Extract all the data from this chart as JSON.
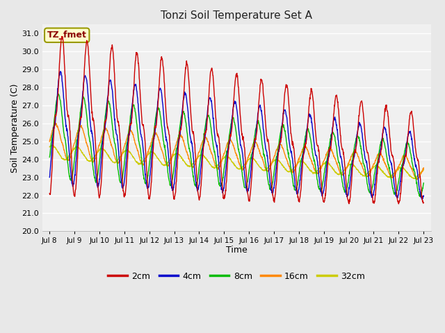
{
  "title": "Tonzi Soil Temperature Set A",
  "xlabel": "Time",
  "ylabel": "Soil Temperature (C)",
  "ylim": [
    20.0,
    31.5
  ],
  "yticks": [
    20.0,
    21.0,
    22.0,
    23.0,
    24.0,
    25.0,
    26.0,
    27.0,
    28.0,
    29.0,
    30.0,
    31.0
  ],
  "xtick_labels": [
    "Jul 8",
    "Jul 9",
    "Jul 10",
    "Jul 11",
    "Jul 12",
    "Jul 13",
    "Jul 14",
    "Jul 15",
    "Jul 16",
    "Jul 17",
    "Jul 18",
    "Jul 19",
    "Jul 20",
    "Jul 21",
    "Jul 22",
    "Jul 23"
  ],
  "legend_label": "TZ_fmet",
  "line_labels": [
    "2cm",
    "4cm",
    "8cm",
    "16cm",
    "32cm"
  ],
  "line_colors": [
    "#cc0000",
    "#0000cc",
    "#00bb00",
    "#ff8800",
    "#cccc00"
  ],
  "fig_bg": "#e8e8e8",
  "plot_bg": "#f0f0f0",
  "grid_color": "#ffffff",
  "n_days": 15,
  "points_per_day": 96
}
